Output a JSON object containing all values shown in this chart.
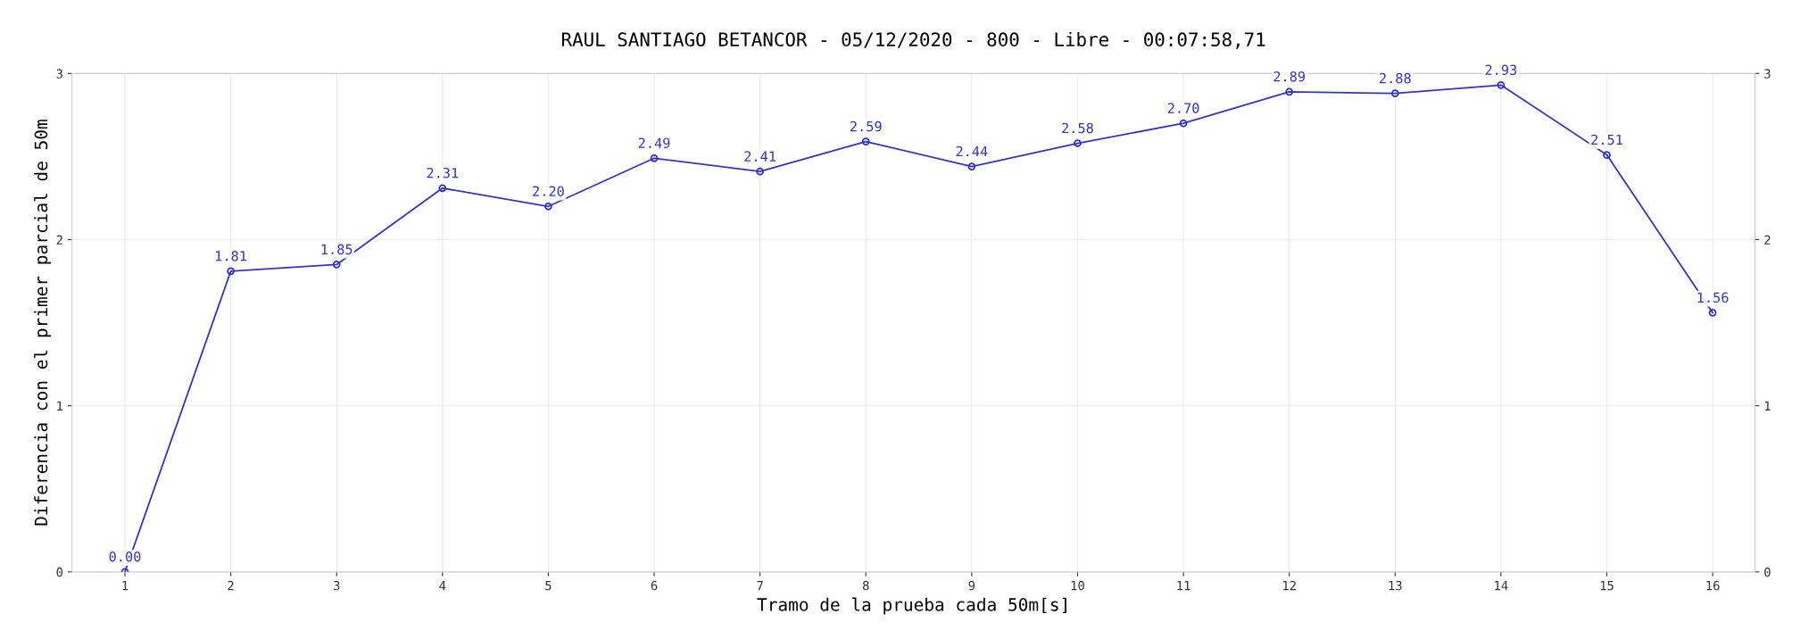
{
  "chart_data": {
    "type": "line",
    "title": "RAUL SANTIAGO BETANCOR - 05/12/2020 - 800 - Libre - 00:07:58,71",
    "xlabel": "Tramo de la prueba cada 50m[s]",
    "ylabel": "Diferencia con el primer parcial de 50m",
    "x": [
      1,
      2,
      3,
      4,
      5,
      6,
      7,
      8,
      9,
      10,
      11,
      12,
      13,
      14,
      15,
      16
    ],
    "series": [
      {
        "color": "#3333cc",
        "values": [
          0.0,
          1.81,
          1.85,
          2.31,
          2.2,
          2.49,
          2.41,
          2.59,
          2.44,
          2.58,
          2.7,
          2.89,
          2.88,
          2.93,
          2.51,
          1.56
        ],
        "value_labels": [
          "0.00",
          "1.81",
          "1.85",
          "2.31",
          "2.20",
          "2.49",
          "2.41",
          "2.59",
          "2.44",
          "2.58",
          "2.70",
          "2.89",
          "2.88",
          "2.93",
          "2.51",
          "1.56"
        ]
      }
    ],
    "xlim": [
      0.5,
      16.4
    ],
    "xticks": [
      1,
      2,
      3,
      4,
      5,
      6,
      7,
      8,
      9,
      10,
      11,
      12,
      13,
      14,
      15,
      16
    ],
    "ylim": [
      0,
      3
    ],
    "yticks": [
      0,
      1,
      2,
      3
    ],
    "y2lim": [
      0,
      3
    ],
    "y2ticks": [
      0,
      1,
      2,
      3
    ],
    "grid": true,
    "marker": "circle",
    "line_style": "solid"
  }
}
